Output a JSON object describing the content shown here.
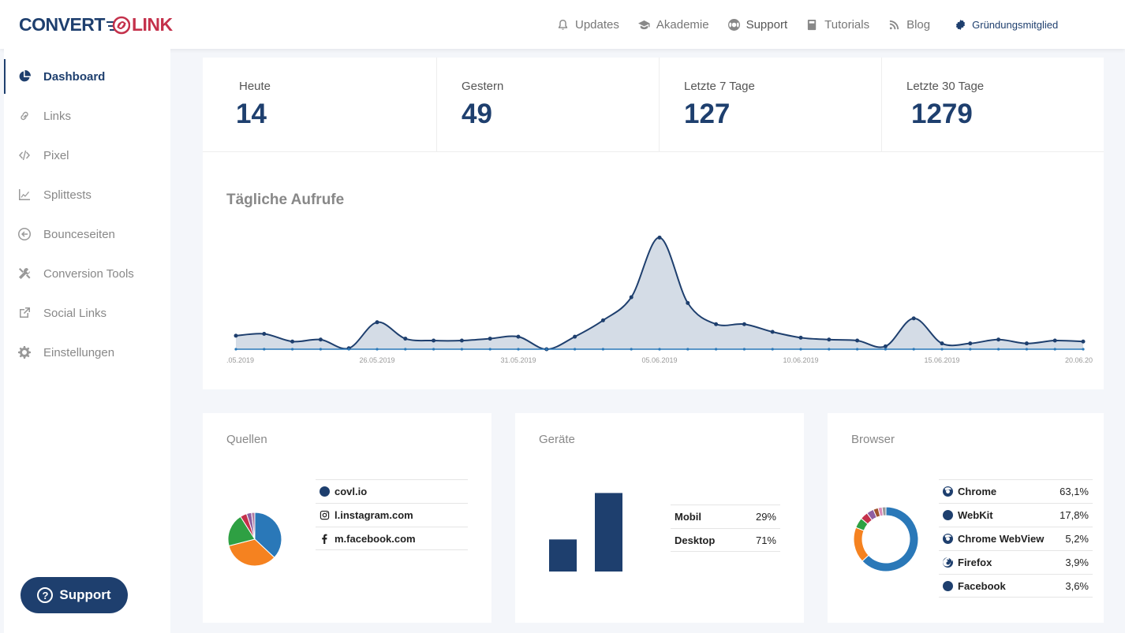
{
  "brand": {
    "part1": "CONVERT",
    "part2": "LINK",
    "colors": {
      "primary": "#1e3f6e",
      "accent": "#c4314b"
    }
  },
  "topnav": [
    {
      "label": "Updates",
      "icon": "bell-icon"
    },
    {
      "label": "Akademie",
      "icon": "graduation-cap-icon"
    },
    {
      "label": "Support",
      "icon": "lifebuoy-icon"
    },
    {
      "label": "Tutorials",
      "icon": "book-icon"
    },
    {
      "label": "Blog",
      "icon": "rss-icon"
    }
  ],
  "member": {
    "label": "Gründungsmitglied",
    "icon": "badge-icon"
  },
  "sidebar": {
    "items": [
      {
        "label": "Dashboard",
        "icon": "pie-chart-icon",
        "active": true
      },
      {
        "label": "Links",
        "icon": "link-icon"
      },
      {
        "label": "Pixel",
        "icon": "code-icon"
      },
      {
        "label": "Splittests",
        "icon": "line-chart-icon"
      },
      {
        "label": "Bounceseiten",
        "icon": "arrow-left-circle-icon"
      },
      {
        "label": "Conversion Tools",
        "icon": "tools-icon"
      },
      {
        "label": "Social Links",
        "icon": "external-link-icon"
      },
      {
        "label": "Einstellungen",
        "icon": "gear-icon"
      }
    ],
    "support_label": "Support"
  },
  "stats": [
    {
      "label": "Heute",
      "value": "14"
    },
    {
      "label": "Gestern",
      "value": "49"
    },
    {
      "label": "Letzte 7 Tage",
      "value": "127"
    },
    {
      "label": "Letzte 30 Tage",
      "value": "1279"
    }
  ],
  "daily_chart": {
    "title": "Tägliche Aufrufe",
    "x_tick_labels": [
      ".05.2019",
      "26.05.2019",
      "31.05.2019",
      "05.06.2019",
      "10.06.2019",
      "15.06.2019",
      "20.06.20"
    ],
    "chart_data": {
      "type": "area",
      "series": [
        {
          "values": [
            12,
            14,
            6,
            8,
            -1,
            26,
            9,
            7,
            7,
            9,
            11,
            -2,
            11,
            28,
            52,
            114,
            46,
            24,
            24,
            16,
            10,
            8,
            7,
            1,
            30,
            4,
            4,
            8,
            4,
            7,
            6
          ]
        }
      ],
      "ylim": [
        -2,
        120
      ],
      "color": "#1e3f6e",
      "fill": "#d4dce6"
    }
  },
  "quellen": {
    "title": "Quellen",
    "items": [
      {
        "label": "covl.io",
        "icon": "globe-icon"
      },
      {
        "label": "l.instagram.com",
        "icon": "instagram-icon"
      },
      {
        "label": "m.facebook.com",
        "icon": "facebook-icon"
      }
    ],
    "chart_data": {
      "type": "pie",
      "values": [
        37,
        34,
        20,
        4,
        3,
        2
      ],
      "colors": [
        "#2a78b8",
        "#f58220",
        "#2ea043",
        "#c4314b",
        "#8e5ea2",
        "#b07aa1"
      ]
    }
  },
  "geraete": {
    "title": "Geräte",
    "items": [
      {
        "label": "Mobil",
        "pct": "29%"
      },
      {
        "label": "Desktop",
        "pct": "71%"
      }
    ],
    "chart_data": {
      "type": "bar",
      "categories": [
        "Mobil",
        "Desktop"
      ],
      "values": [
        29,
        71
      ],
      "ylim": [
        0,
        72
      ],
      "color": "#1e3f6e"
    }
  },
  "browser": {
    "title": "Browser",
    "items": [
      {
        "label": "Chrome",
        "pct": "63,1%",
        "icon": "chrome-icon"
      },
      {
        "label": "WebKit",
        "pct": "17,8%",
        "icon": "globe-icon"
      },
      {
        "label": "Chrome WebView",
        "pct": "5,2%",
        "icon": "chrome-icon"
      },
      {
        "label": "Firefox",
        "pct": "3,9%",
        "icon": "firefox-icon"
      },
      {
        "label": "Facebook",
        "pct": "3,6%",
        "icon": "globe-icon"
      }
    ],
    "chart_data": {
      "type": "pie",
      "values": [
        63.1,
        17.8,
        5.2,
        3.9,
        3.6,
        2.5,
        2.0,
        1.9
      ],
      "colors": [
        "#2a78b8",
        "#f58220",
        "#2ea043",
        "#c4314b",
        "#8e5ea2",
        "#a0522d",
        "#d98ab8",
        "#999999"
      ]
    }
  }
}
